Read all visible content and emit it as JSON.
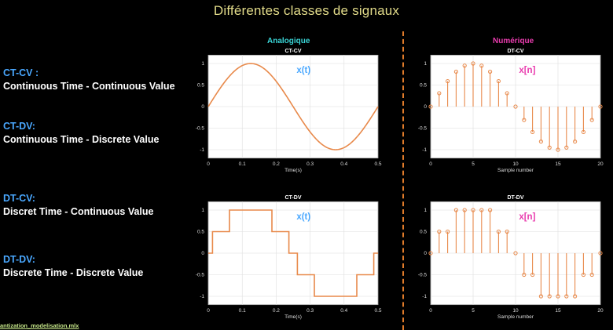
{
  "title": "Différentes classes de signaux",
  "classes": [
    {
      "code": "CT-CV :",
      "desc": "Continuous Time - Continuous Value"
    },
    {
      "code": "CT-DV:",
      "desc": "Continuous Time  - Discrete Value"
    },
    {
      "code": "DT-CV:",
      "desc": "Discret Time - Continuous Value"
    },
    {
      "code": "DT-DV:",
      "desc": "Discrete Time - Discrete Value"
    }
  ],
  "columns": {
    "analog": "Analogique",
    "digital": "Numérique"
  },
  "footer": "antization_modelisation.mlx",
  "colors": {
    "signal": "#e8894a",
    "analog_head": "#3ad7d9",
    "digital_head": "#e93cae",
    "label_blue": "#4aa8ff",
    "label_pink": "#e93cae",
    "plot_bg": "#ffffff",
    "divider": "#e07b2a"
  },
  "chart_data": [
    {
      "type": "line",
      "title": "CT-CV",
      "label": "x(t)",
      "label_color": "blue",
      "xlabel": "Time(s)",
      "ylabel": "",
      "xlim": [
        0,
        0.5
      ],
      "ylim": [
        -1.2,
        1.2
      ],
      "xticks": [
        "0",
        "0.1",
        "0.2",
        "0.3",
        "0.4",
        "0.5"
      ],
      "yticks": [
        "1",
        "0.5",
        "0",
        "-0.5",
        "-1"
      ],
      "grid": true,
      "function": "sin(2*pi*2*t)",
      "x": [
        0,
        0.025,
        0.05,
        0.075,
        0.1,
        0.125,
        0.15,
        0.175,
        0.2,
        0.225,
        0.25,
        0.275,
        0.3,
        0.325,
        0.35,
        0.375,
        0.4,
        0.425,
        0.45,
        0.475,
        0.5
      ],
      "y": [
        0,
        0.31,
        0.59,
        0.81,
        0.95,
        1,
        0.95,
        0.81,
        0.59,
        0.31,
        0,
        -0.31,
        -0.59,
        -0.81,
        -0.95,
        -1,
        -0.95,
        -0.81,
        -0.59,
        -0.31,
        0
      ]
    },
    {
      "type": "stem",
      "title": "DT-CV",
      "label": "x[n]",
      "label_color": "pink",
      "xlabel": "Sample number",
      "ylabel": "",
      "xlim": [
        0,
        20
      ],
      "ylim": [
        -1.2,
        1.2
      ],
      "xticks": [
        "0",
        "5",
        "10",
        "15",
        "20"
      ],
      "yticks": [
        "1",
        "0.5",
        "0",
        "-0.5",
        "-1"
      ],
      "grid": true,
      "x": [
        0,
        1,
        2,
        3,
        4,
        5,
        6,
        7,
        8,
        9,
        10,
        11,
        12,
        13,
        14,
        15,
        16,
        17,
        18,
        19,
        20
      ],
      "y": [
        0,
        0.31,
        0.59,
        0.81,
        0.95,
        1,
        0.95,
        0.81,
        0.59,
        0.31,
        0,
        -0.31,
        -0.59,
        -0.81,
        -0.95,
        -1,
        -0.95,
        -0.81,
        -0.59,
        -0.31,
        0
      ]
    },
    {
      "type": "step",
      "title": "CT-DV",
      "label": "x(t)",
      "label_color": "blue",
      "xlabel": "Time(s)",
      "ylabel": "",
      "xlim": [
        0,
        0.5
      ],
      "ylim": [
        -1.2,
        1.2
      ],
      "xticks": [
        "0",
        "0.1",
        "0.2",
        "0.3",
        "0.4",
        "0.5"
      ],
      "yticks": [
        "1",
        "0.5",
        "0",
        "-0.5",
        "-1"
      ],
      "grid": true,
      "x": [
        0,
        0.025,
        0.05,
        0.075,
        0.1,
        0.125,
        0.15,
        0.175,
        0.2,
        0.225,
        0.25,
        0.275,
        0.3,
        0.325,
        0.35,
        0.375,
        0.4,
        0.425,
        0.45,
        0.475,
        0.5
      ],
      "y": [
        0,
        0.5,
        0.5,
        1,
        1,
        1,
        1,
        1,
        0.5,
        0.5,
        0,
        -0.5,
        -0.5,
        -1,
        -1,
        -1,
        -1,
        -1,
        -0.5,
        -0.5,
        0
      ]
    },
    {
      "type": "stem",
      "title": "DT-DV",
      "label": "x[n]",
      "label_color": "pink",
      "xlabel": "Sample number",
      "ylabel": "",
      "xlim": [
        0,
        20
      ],
      "ylim": [
        -1.2,
        1.2
      ],
      "xticks": [
        "0",
        "5",
        "10",
        "15",
        "20"
      ],
      "yticks": [
        "1",
        "0.5",
        "0",
        "-0.5",
        "-1"
      ],
      "grid": true,
      "x": [
        0,
        1,
        2,
        3,
        4,
        5,
        6,
        7,
        8,
        9,
        10,
        11,
        12,
        13,
        14,
        15,
        16,
        17,
        18,
        19,
        20
      ],
      "y": [
        0,
        0.5,
        0.5,
        1,
        1,
        1,
        1,
        1,
        0.5,
        0.5,
        0,
        -0.5,
        -0.5,
        -1,
        -1,
        -1,
        -1,
        -1,
        -0.5,
        -0.5,
        0
      ]
    }
  ]
}
